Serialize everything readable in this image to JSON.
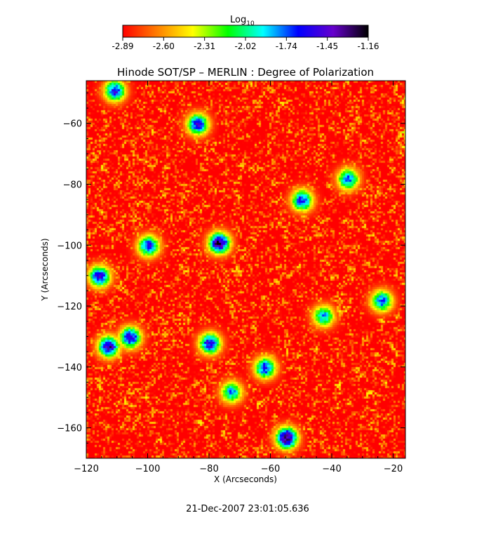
{
  "chart_data": {
    "type": "heatmap",
    "title": "Hinode SOT/SP – MERLIN : Degree of Polarization",
    "xlabel": "X (Arcseconds)",
    "ylabel": "Y (Arcseconds)",
    "xlim": [
      -120,
      -16
    ],
    "ylim": [
      -170,
      -46
    ],
    "x_ticks": [
      -120,
      -100,
      -80,
      -60,
      -40,
      -20
    ],
    "y_ticks": [
      -160,
      -140,
      -120,
      -100,
      -80,
      -60
    ],
    "colorbar": {
      "label_base": "Log",
      "label_sub": "10",
      "range": [
        -2.89,
        -1.16
      ],
      "ticks": [
        "-2.89",
        "-2.60",
        "-2.31",
        "-2.02",
        "-1.74",
        "-1.45",
        "-1.16"
      ],
      "colors": [
        "#ff0000",
        "#ff8000",
        "#ffff00",
        "#00ff00",
        "#00ffff",
        "#0000ff",
        "#6600cc",
        "#000000"
      ]
    },
    "hotspots": [
      {
        "x": -77,
        "y": -99,
        "level": -1.25
      },
      {
        "x": -55,
        "y": -163,
        "level": -1.2
      },
      {
        "x": -113,
        "y": -133,
        "level": -1.4
      },
      {
        "x": -106,
        "y": -130,
        "level": -1.45
      },
      {
        "x": -84,
        "y": -60,
        "level": -1.55
      },
      {
        "x": -80,
        "y": -132,
        "level": -1.5
      },
      {
        "x": -116,
        "y": -110,
        "level": -1.5
      },
      {
        "x": -50,
        "y": -85,
        "level": -1.6
      },
      {
        "x": -100,
        "y": -100,
        "level": -1.6
      },
      {
        "x": -62,
        "y": -140,
        "level": -1.6
      },
      {
        "x": -35,
        "y": -78,
        "level": -1.7
      },
      {
        "x": -24,
        "y": -118,
        "level": -1.7
      },
      {
        "x": -111,
        "y": -49,
        "level": -1.6
      },
      {
        "x": -73,
        "y": -148,
        "level": -1.8
      },
      {
        "x": -43,
        "y": -123,
        "level": -1.8
      }
    ]
  },
  "footer": {
    "timestamp": "21-Dec-2007 23:01:05.636"
  }
}
